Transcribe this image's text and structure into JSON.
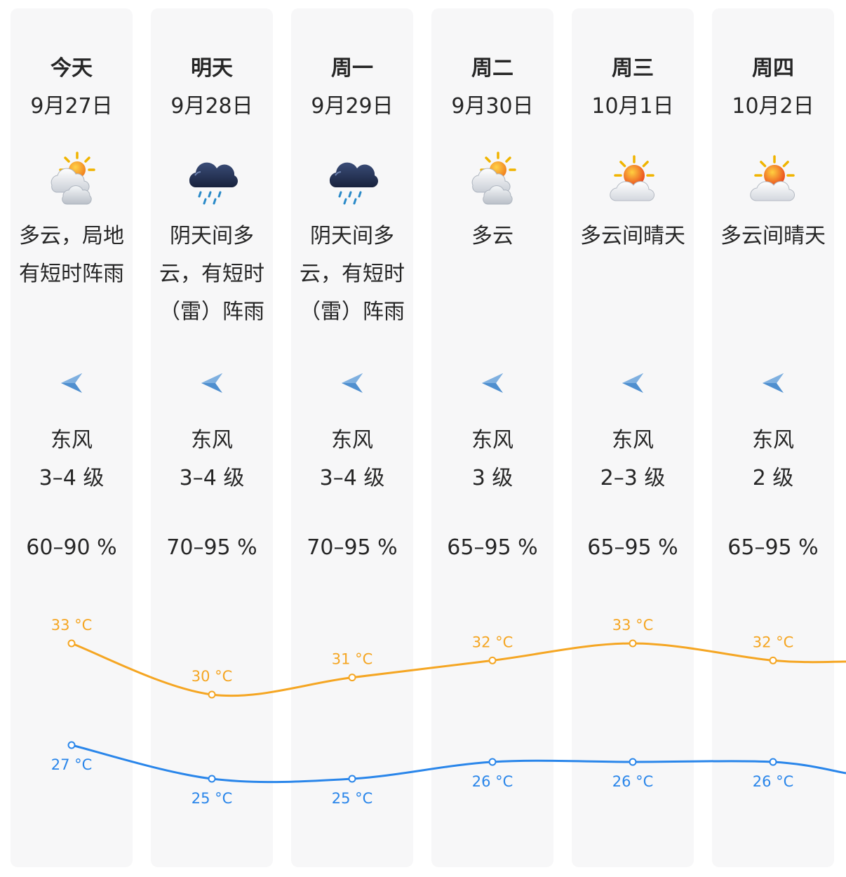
{
  "days": [
    {
      "weekday": "今天",
      "date": "9月27日",
      "icon": "partly-cloudy-icon",
      "condition": "多云，局地有短时阵雨",
      "wind_direction": "东风",
      "wind_level": "3–4 级",
      "humidity": "60–90 %",
      "high": "33 °C",
      "low": "27 °C"
    },
    {
      "weekday": "明天",
      "date": "9月28日",
      "icon": "rain-cloud-icon",
      "condition": "阴天间多云，有短时（雷）阵雨",
      "wind_direction": "东风",
      "wind_level": "3–4 级",
      "humidity": "70–95 %",
      "high": "30 °C",
      "low": "25 °C"
    },
    {
      "weekday": "周一",
      "date": "9月29日",
      "icon": "rain-cloud-icon",
      "condition": "阴天间多云，有短时（雷）阵雨",
      "wind_direction": "东风",
      "wind_level": "3–4 级",
      "humidity": "70–95 %",
      "high": "31 °C",
      "low": "25 °C"
    },
    {
      "weekday": "周二",
      "date": "9月30日",
      "icon": "partly-cloudy-icon",
      "condition": "多云",
      "wind_direction": "东风",
      "wind_level": "3 级",
      "humidity": "65–95 %",
      "high": "32 °C",
      "low": "26 °C"
    },
    {
      "weekday": "周三",
      "date": "10月1日",
      "icon": "sun-behind-cloud-icon",
      "condition": "多云间晴天",
      "wind_direction": "东风",
      "wind_level": "2–3 级",
      "humidity": "65–95 %",
      "high": "33 °C",
      "low": "26 °C"
    },
    {
      "weekday": "周四",
      "date": "10月2日",
      "icon": "sun-behind-cloud-icon",
      "condition": "多云间晴天",
      "wind_direction": "东风",
      "wind_level": "2 级",
      "humidity": "65–95 %",
      "high": "32 °C",
      "low": "26 °C"
    }
  ],
  "wind_icon": "wind-direction-arrow-icon",
  "colors": {
    "high_line": "#f5a623",
    "low_line": "#2a86ea",
    "card_bg": "#f7f7f8",
    "wind_arrow": "#4f8fcf"
  },
  "chart_data": {
    "type": "line",
    "categories": [
      "今天",
      "明天",
      "周一",
      "周二",
      "周三",
      "周四"
    ],
    "unit": "°C",
    "series": [
      {
        "values": [
          33,
          30,
          31,
          32,
          33,
          32
        ]
      },
      {
        "values": [
          27,
          25,
          25,
          26,
          26,
          26
        ]
      }
    ]
  }
}
